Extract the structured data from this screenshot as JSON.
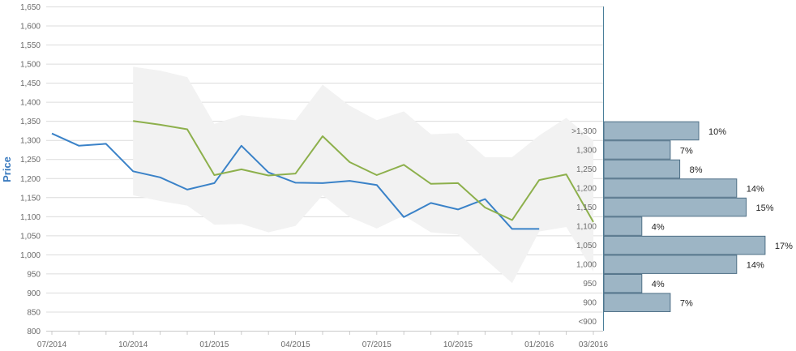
{
  "chart_data": [
    {
      "type": "line",
      "title": "",
      "ylabel": "Price",
      "ylim": [
        800,
        1650
      ],
      "y_ticks": [
        "800",
        "850",
        "900",
        "950",
        "1,000",
        "1,050",
        "1,100",
        "1,150",
        "1,200",
        "1,250",
        "1,300",
        "1,350",
        "1,400",
        "1,450",
        "1,500",
        "1,550",
        "1,600",
        "1,650"
      ],
      "x_tick_labels": [
        "07/2014",
        "10/2014",
        "01/2015",
        "04/2015",
        "07/2015",
        "10/2015",
        "01/2016",
        "03/2016"
      ],
      "grid": true,
      "x_months": [
        "2014-07",
        "2014-08",
        "2014-09",
        "2014-10",
        "2014-11",
        "2014-12",
        "2015-01",
        "2015-02",
        "2015-03",
        "2015-04",
        "2015-05",
        "2015-06",
        "2015-07",
        "2015-08",
        "2015-09",
        "2015-10",
        "2015-11",
        "2015-12",
        "2016-01",
        "2016-02",
        "2016-03"
      ],
      "series": [
        {
          "color": "#3a82c8",
          "values": [
            1317,
            1285,
            1290,
            1218,
            1202,
            1170,
            1187,
            1285,
            1215,
            1188,
            1187,
            1193,
            1182,
            1098,
            1135,
            1118,
            1145,
            1067,
            1067,
            null,
            null
          ]
        },
        {
          "color": "#8db04c",
          "values": [
            null,
            null,
            null,
            1350,
            1340,
            1328,
            1208,
            1223,
            1207,
            1212,
            1310,
            1242,
            1208,
            1235,
            1185,
            1187,
            1123,
            1090,
            1195,
            1210,
            1085
          ]
        }
      ],
      "band": {
        "color": "#f2f2f2",
        "upper": [
          null,
          null,
          null,
          1492,
          1482,
          1465,
          1342,
          1365,
          1358,
          1352,
          1445,
          1390,
          1352,
          1375,
          1315,
          1318,
          1255,
          1255,
          1312,
          1358,
          1298
        ],
        "lower": [
          null,
          null,
          null,
          1155,
          1140,
          1128,
          1078,
          1080,
          1058,
          1075,
          1155,
          1098,
          1068,
          1102,
          1058,
          1052,
          988,
          925,
          1060,
          1072,
          955
        ]
      }
    },
    {
      "type": "bar",
      "orientation": "horizontal",
      "color": "#9db5c5",
      "categories": [
        ">1,300",
        "1,300",
        "1,250",
        "1,200",
        "1,150",
        "1,100",
        "1,050",
        "1,000",
        "950",
        "900",
        "<900"
      ],
      "values": [
        10,
        7,
        8,
        14,
        15,
        4,
        17,
        14,
        4,
        7,
        null
      ],
      "labels": [
        "10%",
        "7%",
        "8%",
        "14%",
        "15%",
        "4%",
        "17%",
        "14%",
        "4%",
        "7%",
        ""
      ]
    }
  ]
}
